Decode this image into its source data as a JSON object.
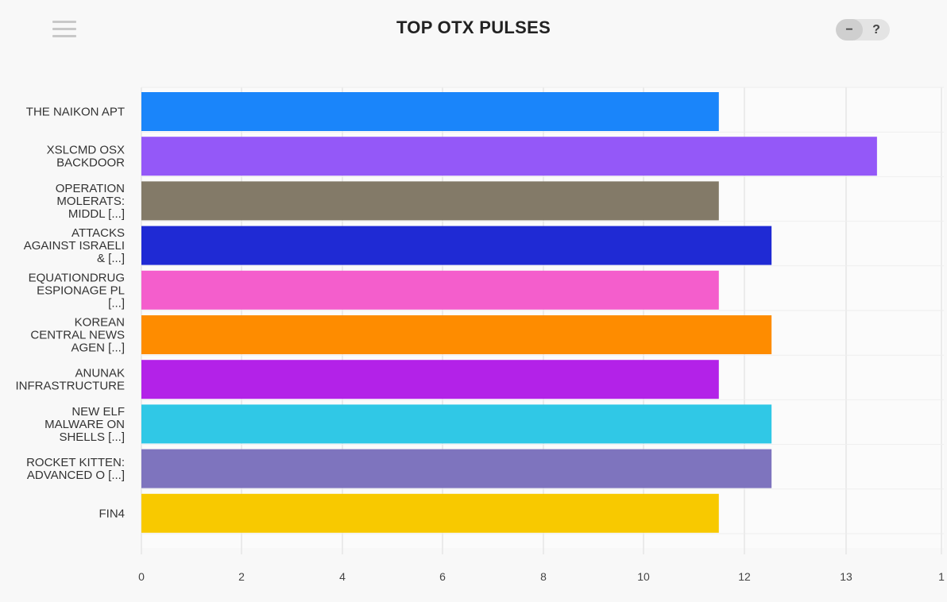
{
  "header": {
    "title": "TOP OTX PULSES",
    "minimize_label": "−",
    "help_label": "?",
    "menu_icon": "hamburger-icon"
  },
  "chart_data": {
    "type": "bar",
    "orientation": "horizontal",
    "title": "TOP OTX PULSES",
    "xlabel": "",
    "ylabel": "",
    "categories": [
      [
        "THE NAIKON APT"
      ],
      [
        "XSLCMD OSX",
        "BACKDOOR"
      ],
      [
        "OPERATION",
        "MOLERATS:",
        "MIDDL [...]"
      ],
      [
        "ATTACKS",
        "AGAINST ISRAELI",
        "& [...]"
      ],
      [
        "EQUATIONDRUG",
        "ESPIONAGE PL",
        "[...]"
      ],
      [
        "KOREAN",
        "CENTRAL NEWS",
        "AGEN [...]"
      ],
      [
        "ANUNAK",
        "INFRASTRUCTURE"
      ],
      [
        "NEW ELF",
        "MALWARE ON",
        "SHELLS [...]"
      ],
      [
        "ROCKET KITTEN:",
        "ADVANCED O [...]"
      ],
      [
        "FIN4"
      ]
    ],
    "values": [
      11.5,
      14.65,
      11.5,
      12.55,
      11.5,
      12.55,
      11.5,
      12.55,
      12.55,
      11.5
    ],
    "colors": [
      "#1a85fa",
      "#9458f8",
      "#837a68",
      "#1f2ad4",
      "#f45ecc",
      "#fe8c00",
      "#b322e8",
      "#30c8e6",
      "#7e74be",
      "#f8c900"
    ],
    "x_ticks": [
      "0",
      "2",
      "4",
      "6",
      "8",
      "10",
      "12",
      "13",
      "1"
    ],
    "xlim": [
      0,
      16
    ],
    "grid": true,
    "legend": "none"
  }
}
